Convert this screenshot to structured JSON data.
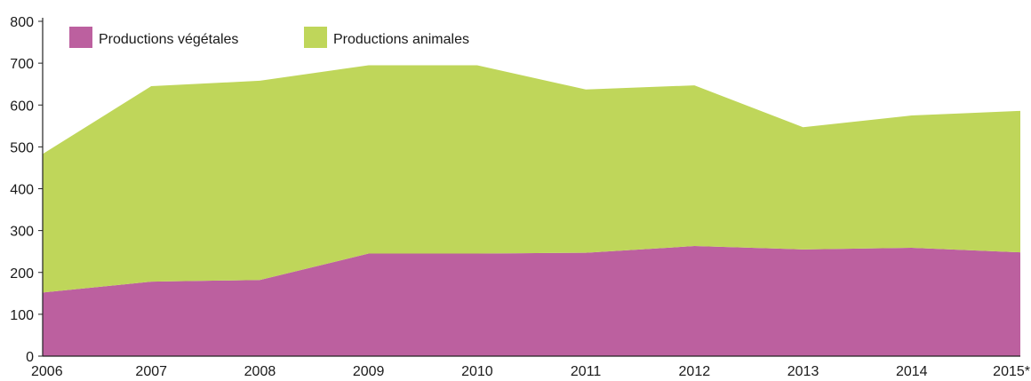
{
  "chart_data": {
    "type": "area",
    "stacked": true,
    "categories": [
      "2006",
      "2007",
      "2008",
      "2009",
      "2010",
      "2011",
      "2012",
      "2013",
      "2014",
      "2015*"
    ],
    "series": [
      {
        "name": "Productions végétales",
        "color": "#bc609f",
        "values": [
          152,
          178,
          182,
          245,
          245,
          247,
          263,
          255,
          259,
          248
        ]
      },
      {
        "name": "Productions animales",
        "color": "#bfd65a",
        "values": [
          331,
          467,
          476,
          450,
          450,
          390,
          384,
          292,
          316,
          338
        ]
      }
    ],
    "ylim": [
      0,
      800
    ],
    "yticks": [
      0,
      100,
      200,
      300,
      400,
      500,
      600,
      700,
      800
    ],
    "grid": false,
    "legend_position": "top-left"
  }
}
